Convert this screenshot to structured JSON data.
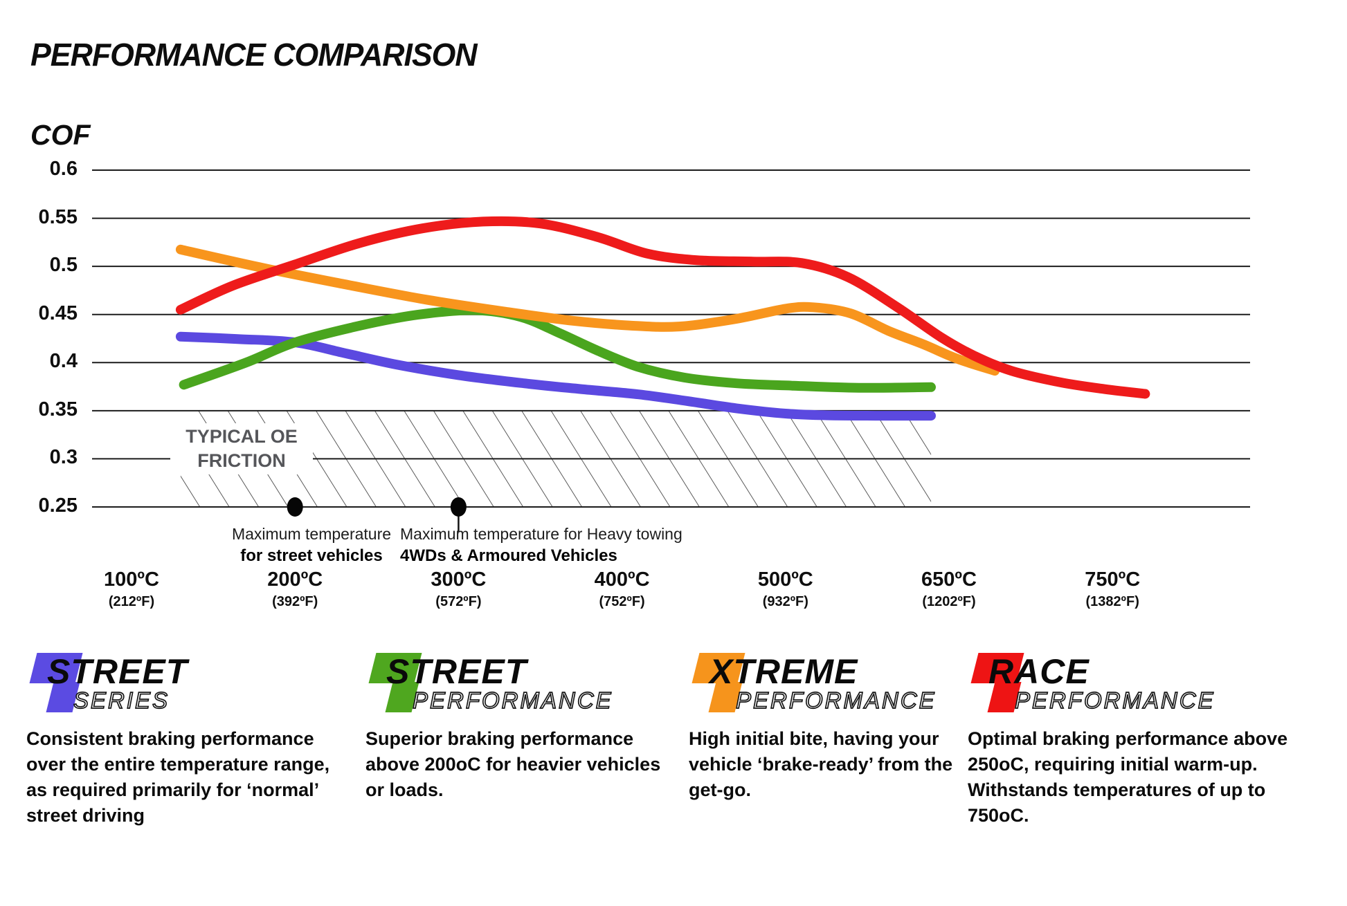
{
  "page": {
    "title": "PERFORMANCE COMPARISON",
    "y_axis_title": "COF"
  },
  "chart_data": {
    "type": "line",
    "title": "PERFORMANCE COMPARISON",
    "ylabel": "COF",
    "xlabel": "",
    "ylim": [
      0.25,
      0.6
    ],
    "grid": "horizontal",
    "legend_position": "bottom",
    "y_tick_values": [
      0.6,
      0.55,
      0.5,
      0.45,
      0.4,
      0.35,
      0.3,
      0.25
    ],
    "y_tick_labels": [
      "0.6",
      "0.55",
      "0.5",
      "0.45",
      "0.4",
      "0.35",
      "0.3",
      "0.25"
    ],
    "x_categories": [
      {
        "label": "100ºC",
        "sub": "(212ºF)"
      },
      {
        "label": "200ºC",
        "sub": "(392ºF)"
      },
      {
        "label": "300ºC",
        "sub": "(572ºF)"
      },
      {
        "label": "400ºC",
        "sub": "(752ºF)"
      },
      {
        "label": "500ºC",
        "sub": "(932ºF)"
      },
      {
        "label": "650ºC",
        "sub": "(1202ºF)"
      },
      {
        "label": "750ºC",
        "sub": "(1382ºF)"
      }
    ],
    "series": [
      {
        "name": "Street Series",
        "color": "#5b49e0",
        "points": [
          [
            0.3,
            0.427
          ],
          [
            0.65,
            0.4245
          ],
          [
            1.0,
            0.421
          ],
          [
            1.3,
            0.41
          ],
          [
            1.62,
            0.398
          ],
          [
            2.0,
            0.387
          ],
          [
            2.4,
            0.3785
          ],
          [
            2.75,
            0.3725
          ],
          [
            3.1,
            0.367
          ],
          [
            3.4,
            0.36
          ],
          [
            3.7,
            0.3525
          ],
          [
            4.0,
            0.347
          ],
          [
            4.25,
            0.3452
          ],
          [
            4.55,
            0.3448
          ],
          [
            4.89,
            0.3448
          ]
        ]
      },
      {
        "name": "Street Performance",
        "color": "#4aa51e",
        "points": [
          [
            0.32,
            0.377
          ],
          [
            0.7,
            0.4
          ],
          [
            1.0,
            0.421
          ],
          [
            1.4,
            0.4385
          ],
          [
            1.75,
            0.4497
          ],
          [
            2.1,
            0.4545
          ],
          [
            2.38,
            0.4475
          ],
          [
            2.62,
            0.4305
          ],
          [
            2.85,
            0.4125
          ],
          [
            3.1,
            0.3955
          ],
          [
            3.38,
            0.3845
          ],
          [
            3.7,
            0.3785
          ],
          [
            4.05,
            0.376
          ],
          [
            4.45,
            0.3738
          ],
          [
            4.89,
            0.3745
          ]
        ]
      },
      {
        "name": "Xtreme Performance",
        "color": "#f8951d",
        "points": [
          [
            0.3,
            0.5175
          ],
          [
            0.8,
            0.4985
          ],
          [
            1.3,
            0.4815
          ],
          [
            1.8,
            0.4655
          ],
          [
            2.3,
            0.4525
          ],
          [
            2.7,
            0.4435
          ],
          [
            3.05,
            0.4385
          ],
          [
            3.35,
            0.4375
          ],
          [
            3.7,
            0.4455
          ],
          [
            4.0,
            0.456
          ],
          [
            4.17,
            0.4575
          ],
          [
            4.4,
            0.451
          ],
          [
            4.63,
            0.433
          ],
          [
            4.85,
            0.4185
          ],
          [
            5.05,
            0.404
          ],
          [
            5.28,
            0.3915
          ]
        ]
      },
      {
        "name": "Race Performance",
        "color": "#ee1b1b",
        "points": [
          [
            0.3,
            0.455
          ],
          [
            0.62,
            0.48
          ],
          [
            1.0,
            0.502
          ],
          [
            1.4,
            0.5245
          ],
          [
            1.78,
            0.5395
          ],
          [
            2.15,
            0.5465
          ],
          [
            2.5,
            0.5445
          ],
          [
            2.85,
            0.5305
          ],
          [
            3.15,
            0.5135
          ],
          [
            3.45,
            0.5065
          ],
          [
            3.8,
            0.505
          ],
          [
            4.1,
            0.5035
          ],
          [
            4.38,
            0.489
          ],
          [
            4.68,
            0.458
          ],
          [
            4.95,
            0.4265
          ],
          [
            5.15,
            0.4075
          ],
          [
            5.38,
            0.3915
          ],
          [
            5.68,
            0.3795
          ],
          [
            5.95,
            0.3725
          ],
          [
            6.2,
            0.3675
          ]
        ]
      }
    ],
    "oe_band": {
      "line1": "TYPICAL OE",
      "line2": "FRICTION",
      "x_range": [
        0.3,
        4.89
      ],
      "cof_range": [
        0.25,
        0.35
      ]
    },
    "markers": [
      {
        "x": 1,
        "cof": 0.25,
        "stem": false,
        "label_line1": "Maximum temperature",
        "label_line2": "for street vehicles"
      },
      {
        "x": 2,
        "cof": 0.25,
        "stem": true,
        "label_line1": "Maximum temperature for Heavy towing",
        "label_line2": "4WDs & Armoured Vehicles"
      }
    ]
  },
  "legend": {
    "items": [
      {
        "glyph": "4",
        "color": "#5b4be2",
        "word1": "STREET",
        "word2": "SERIES",
        "description": "Consistent braking performance over the entire temperature range, as required primarily for ‘normal’ street driving"
      },
      {
        "glyph": "4",
        "color": "#4fa71f",
        "word1": "STREET",
        "word2": "PERFORMANCE",
        "description": "Superior braking performance above 200oC for heavier vehicles or loads."
      },
      {
        "glyph": "4",
        "color": "#f6941c",
        "word1": "XTREME",
        "word2": "PERFORMANCE",
        "description": "High initial bite, having your vehicle ‘brake-ready’ from the get-go."
      },
      {
        "glyph": "4",
        "color": "#ee1414",
        "word1": "RACE",
        "word2": "PERFORMANCE",
        "description": "Optimal braking performance above 250oC, requiring initial warm-up. Withstands temperatures of up to 750oC."
      }
    ]
  }
}
